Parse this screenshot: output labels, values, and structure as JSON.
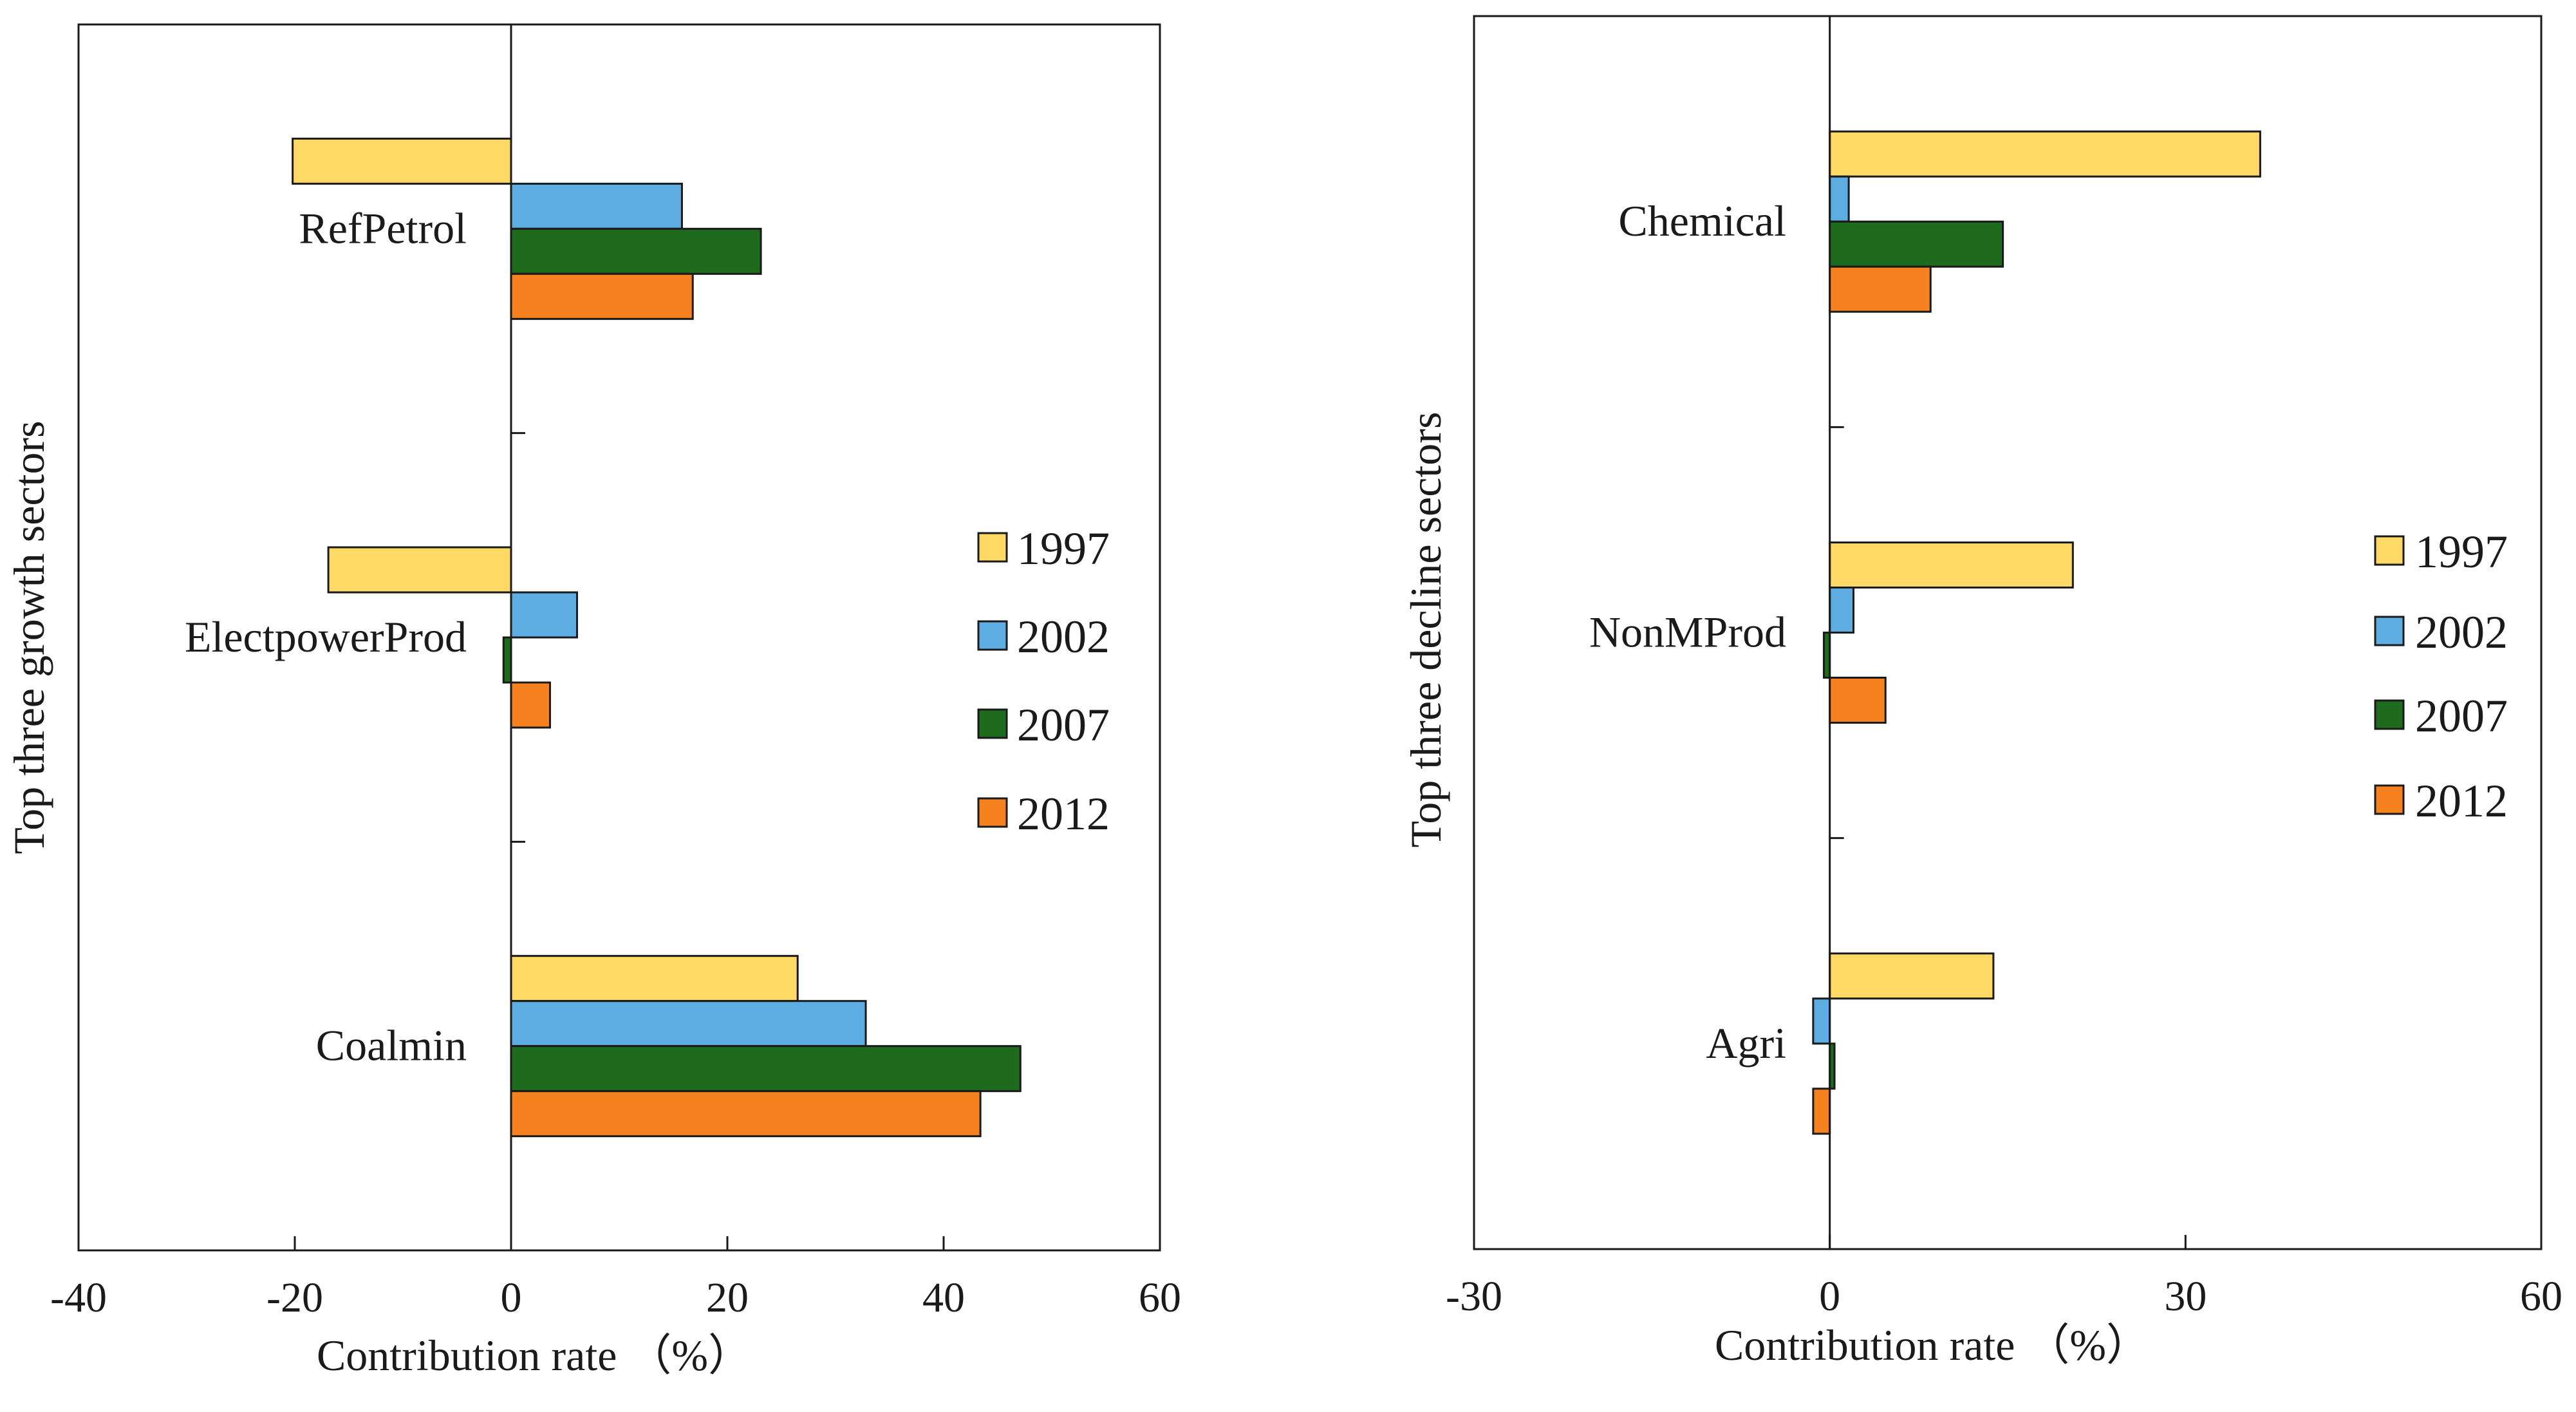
{
  "chart_data": [
    {
      "type": "bar",
      "orientation": "horizontal",
      "title": "",
      "xlabel": "Contribution rate （%）",
      "ylabel": "Top three growth sectors",
      "xlim": [
        -40,
        60
      ],
      "xticks": [
        -40,
        -20,
        0,
        20,
        40,
        60
      ],
      "xtick_labels": [
        "-40",
        "-20",
        "0",
        "20",
        "40",
        "60"
      ],
      "categories": [
        "RefPetrol",
        "ElectpowerProd",
        "Coalmin"
      ],
      "series": [
        {
          "name": "1997",
          "color": "#FFD966",
          "values": [
            -20.2,
            -16.9,
            26.5
          ]
        },
        {
          "name": "2002",
          "color": "#5DADE2",
          "values": [
            15.8,
            6.1,
            32.8
          ]
        },
        {
          "name": "2007",
          "color": "#1E6B1E",
          "values": [
            23.1,
            -0.7,
            47.1
          ]
        },
        {
          "name": "2012",
          "color": "#F5821F",
          "values": [
            16.8,
            3.6,
            43.4
          ]
        }
      ],
      "legend": {
        "position": "right",
        "entries": [
          "1997",
          "2002",
          "2007",
          "2012"
        ]
      },
      "grid": false
    },
    {
      "type": "bar",
      "orientation": "horizontal",
      "title": "",
      "xlabel": "Contribution rate （%）",
      "ylabel": "Top three decline sectors",
      "xlim": [
        -30,
        60
      ],
      "xticks": [
        -30,
        0,
        30,
        60
      ],
      "xtick_labels": [
        "-30",
        "0",
        "30",
        "60"
      ],
      "categories": [
        "Chemical",
        "NonMProd",
        "Agri"
      ],
      "series": [
        {
          "name": "1997",
          "color": "#FFD966",
          "values": [
            36.3,
            20.5,
            13.8
          ]
        },
        {
          "name": "2002",
          "color": "#5DADE2",
          "values": [
            1.6,
            2.0,
            -1.4
          ]
        },
        {
          "name": "2007",
          "color": "#1E6B1E",
          "values": [
            14.6,
            -0.5,
            0.4
          ]
        },
        {
          "name": "2012",
          "color": "#F5821F",
          "values": [
            8.5,
            4.7,
            -1.4
          ]
        }
      ],
      "legend": {
        "position": "right",
        "entries": [
          "1997",
          "2002",
          "2007",
          "2012"
        ]
      },
      "grid": false
    }
  ]
}
